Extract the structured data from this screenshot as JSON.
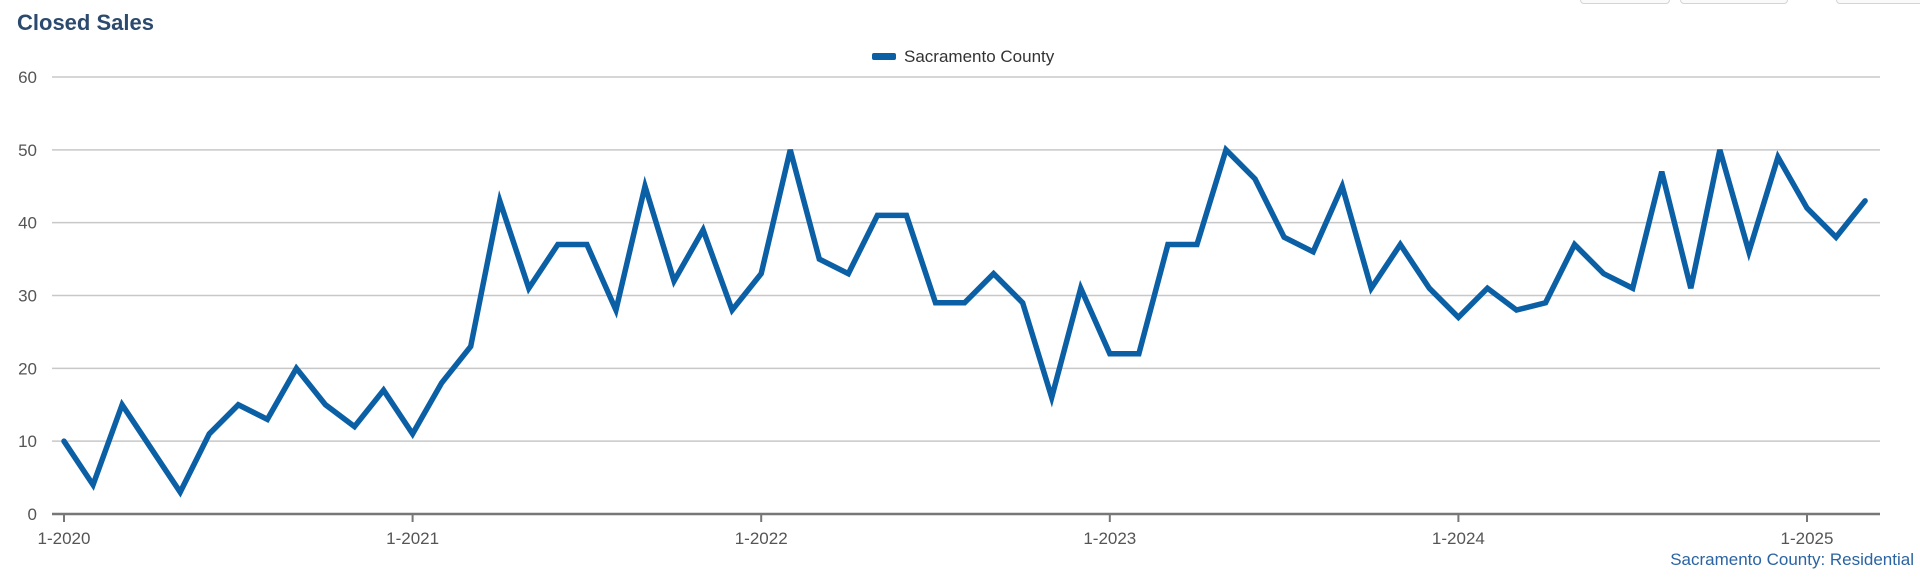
{
  "chart_data": {
    "type": "line",
    "title": "Closed Sales",
    "ylim": [
      0,
      60
    ],
    "yticks": [
      0,
      10,
      20,
      30,
      40,
      50,
      60
    ],
    "xtick_labels": [
      "1-2020",
      "1-2021",
      "1-2022",
      "1-2023",
      "1-2024",
      "1-2025"
    ],
    "grid": true,
    "legend_position": "top-center",
    "credit": "Sacramento County: Residential",
    "series": [
      {
        "name": "Sacramento County",
        "color": "#0b5fa5",
        "x": [
          "1-2020",
          "2-2020",
          "3-2020",
          "4-2020",
          "5-2020",
          "6-2020",
          "7-2020",
          "8-2020",
          "9-2020",
          "10-2020",
          "11-2020",
          "12-2020",
          "1-2021",
          "2-2021",
          "3-2021",
          "4-2021",
          "5-2021",
          "6-2021",
          "7-2021",
          "8-2021",
          "9-2021",
          "10-2021",
          "11-2021",
          "12-2021",
          "1-2022",
          "2-2022",
          "3-2022",
          "4-2022",
          "5-2022",
          "6-2022",
          "7-2022",
          "8-2022",
          "9-2022",
          "10-2022",
          "11-2022",
          "12-2022",
          "1-2023",
          "2-2023",
          "3-2023",
          "4-2023",
          "5-2023",
          "6-2023",
          "7-2023",
          "8-2023",
          "9-2023",
          "10-2023",
          "11-2023",
          "12-2023",
          "1-2024",
          "2-2024",
          "3-2024",
          "4-2024",
          "5-2024",
          "6-2024",
          "7-2024",
          "8-2024",
          "9-2024",
          "10-2024",
          "11-2024",
          "12-2024",
          "1-2025",
          "2-2025",
          "3-2025"
        ],
        "values": [
          10,
          4,
          15,
          9,
          3,
          11,
          15,
          13,
          20,
          15,
          12,
          17,
          11,
          18,
          23,
          43,
          31,
          37,
          37,
          28,
          45,
          32,
          39,
          28,
          33,
          50,
          35,
          33,
          41,
          41,
          29,
          29,
          33,
          29,
          16,
          31,
          22,
          22,
          37,
          37,
          50,
          46,
          38,
          36,
          45,
          31,
          37,
          31,
          27,
          31,
          28,
          29,
          37,
          33,
          31,
          47,
          31,
          50,
          36,
          49,
          42,
          38,
          43
        ]
      }
    ]
  }
}
